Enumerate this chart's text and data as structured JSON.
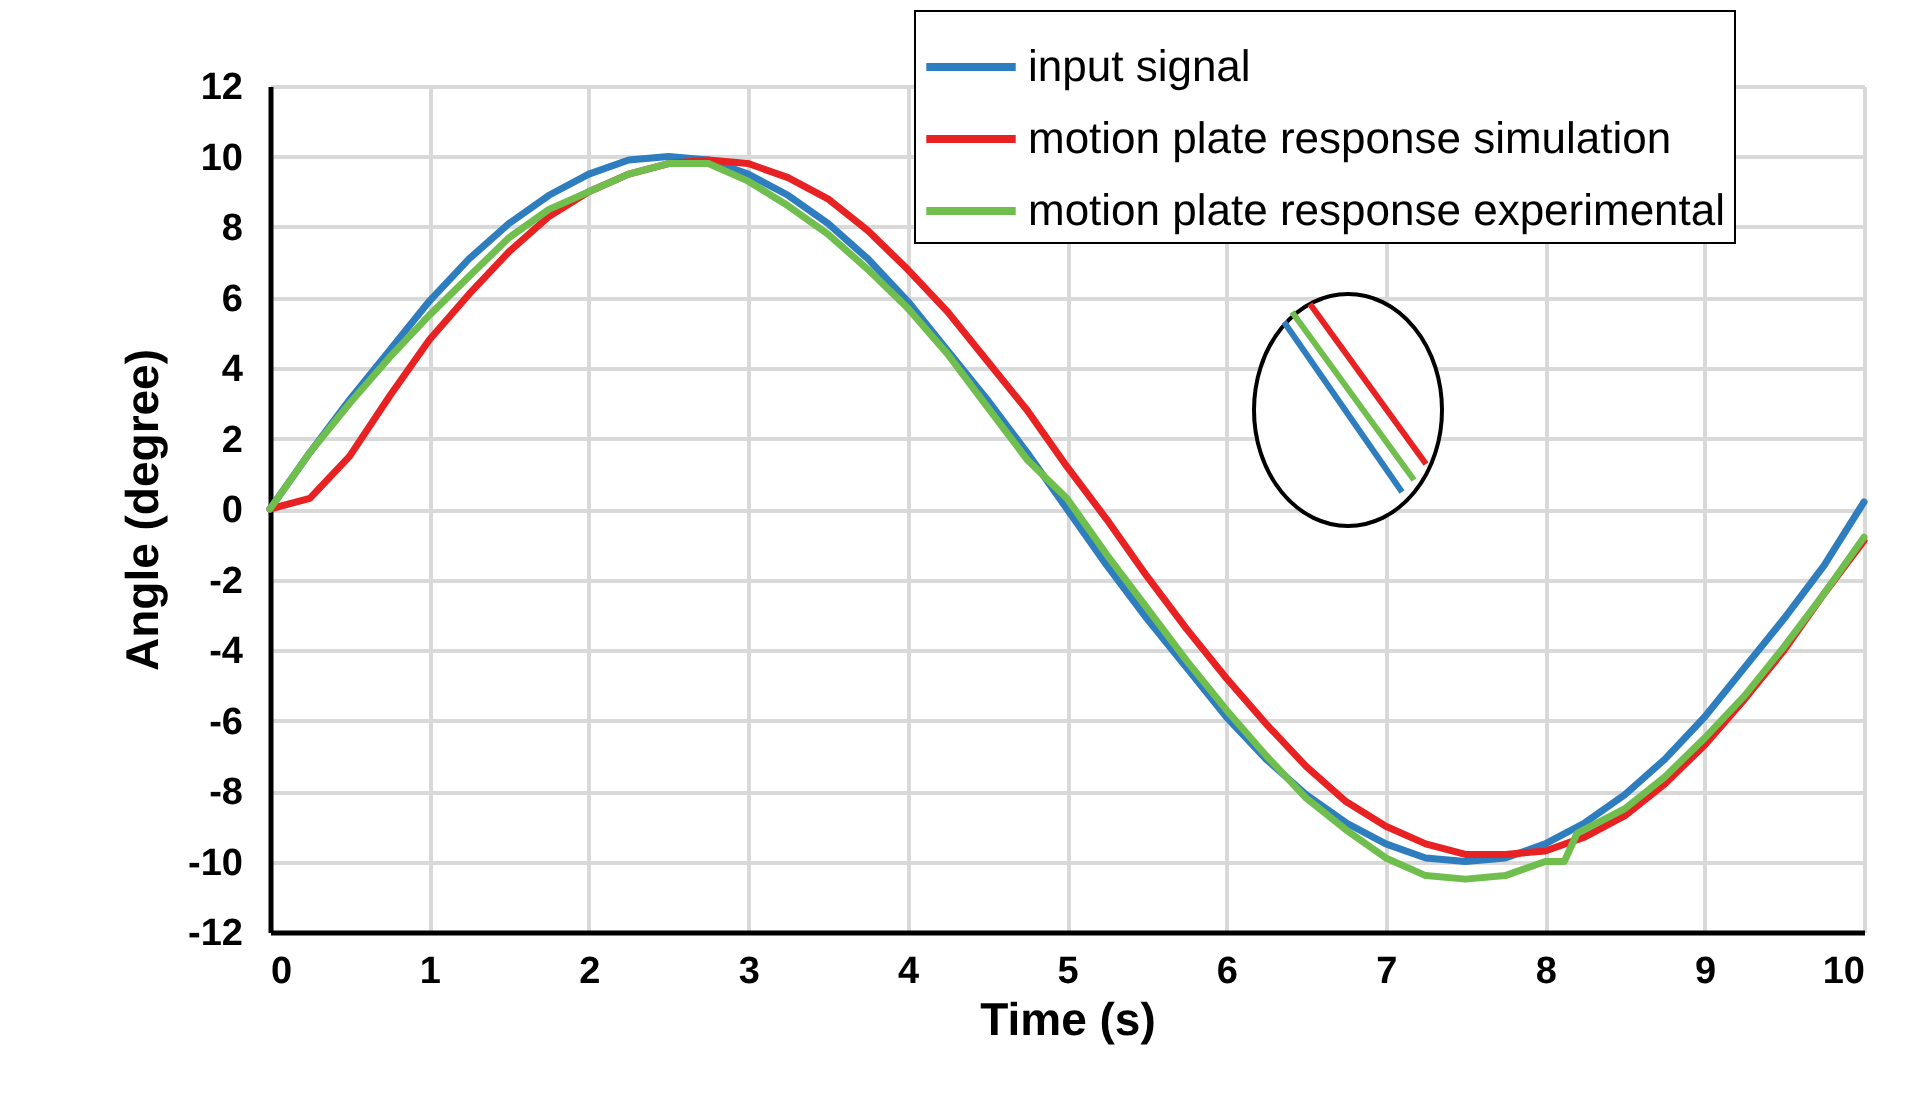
{
  "chart_data": {
    "type": "line",
    "xlabel": "Time (s)",
    "ylabel": "Angle (degree)",
    "xlim": [
      0,
      10
    ],
    "xticks": [
      0,
      1,
      2,
      3,
      4,
      5,
      6,
      7,
      8,
      9,
      10
    ],
    "ylim": [
      -12,
      12
    ],
    "yticks": [
      -12,
      -10,
      -8,
      -6,
      -4,
      -2,
      0,
      2,
      4,
      6,
      8,
      10,
      12
    ],
    "grid": true,
    "legend": "top right",
    "line_style": "solid",
    "marker": "none",
    "series": [
      {
        "name": "input signal",
        "color": "#2e7ebf",
        "x": [
          0,
          0.25,
          0.5,
          0.75,
          1,
          1.25,
          1.5,
          1.75,
          2,
          2.25,
          2.5,
          2.75,
          3,
          3.25,
          3.5,
          3.75,
          4,
          4.25,
          4.5,
          4.75,
          5,
          5.25,
          5.5,
          5.75,
          6,
          6.25,
          6.5,
          6.75,
          7,
          7.25,
          7.5,
          7.75,
          8,
          8.25,
          8.5,
          8.75,
          9,
          9.25,
          9.5,
          9.75,
          10
        ],
        "values": [
          0,
          1.6,
          3.1,
          4.5,
          5.9,
          7.1,
          8.1,
          8.9,
          9.5,
          9.9,
          10,
          9.9,
          9.5,
          8.9,
          8.1,
          7.1,
          5.9,
          4.5,
          3.1,
          1.6,
          0,
          -1.6,
          -3.1,
          -4.5,
          -5.9,
          -7.1,
          -8.1,
          -8.9,
          -9.5,
          -9.9,
          -10,
          -9.9,
          -9.5,
          -8.9,
          -8.1,
          -7.1,
          -5.9,
          -4.5,
          -3.1,
          -1.6,
          0.2
        ]
      },
      {
        "name": "motion plate response simulation",
        "color": "#e82222",
        "x": [
          0,
          0.25,
          0.5,
          0.75,
          1,
          1.25,
          1.5,
          1.75,
          2,
          2.25,
          2.5,
          2.75,
          3,
          3.25,
          3.5,
          3.75,
          4,
          4.25,
          4.5,
          4.75,
          5,
          5.25,
          5.5,
          5.75,
          6,
          6.25,
          6.5,
          6.75,
          7,
          7.25,
          7.5,
          7.75,
          8,
          8.25,
          8.5,
          8.75,
          9,
          9.25,
          9.5,
          9.75,
          10
        ],
        "values": [
          0,
          0.3,
          1.5,
          3.2,
          4.8,
          6.1,
          7.3,
          8.3,
          9.0,
          9.5,
          9.8,
          9.9,
          9.8,
          9.4,
          8.8,
          7.9,
          6.8,
          5.6,
          4.2,
          2.8,
          1.2,
          -0.3,
          -1.9,
          -3.4,
          -4.8,
          -6.1,
          -7.3,
          -8.3,
          -9.0,
          -9.5,
          -9.8,
          -9.8,
          -9.7,
          -9.3,
          -8.7,
          -7.8,
          -6.7,
          -5.4,
          -4.0,
          -2.4,
          -0.9
        ]
      },
      {
        "name": "motion plate response experimental",
        "color": "#70bf4e",
        "x": [
          0,
          0.25,
          0.5,
          0.75,
          1,
          1.25,
          1.5,
          1.75,
          2,
          2.25,
          2.5,
          2.75,
          3,
          3.25,
          3.5,
          3.75,
          4,
          4.25,
          4.5,
          4.75,
          5,
          5.25,
          5.5,
          5.75,
          6,
          6.25,
          6.5,
          6.75,
          7,
          7.25,
          7.5,
          7.75,
          8,
          8.12,
          8.2,
          8.5,
          8.75,
          9,
          9.25,
          9.5,
          9.75,
          10
        ],
        "values": [
          0,
          1.6,
          3.0,
          4.3,
          5.5,
          6.6,
          7.7,
          8.5,
          9.0,
          9.5,
          9.8,
          9.8,
          9.3,
          8.6,
          7.8,
          6.8,
          5.7,
          4.4,
          2.9,
          1.4,
          0.3,
          -1.3,
          -2.8,
          -4.3,
          -5.7,
          -7.0,
          -8.2,
          -9.1,
          -9.9,
          -10.4,
          -10.5,
          -10.4,
          -10.0,
          -10.0,
          -9.2,
          -8.5,
          -7.6,
          -6.5,
          -5.3,
          -3.9,
          -2.4,
          -0.8
        ]
      }
    ]
  }
}
